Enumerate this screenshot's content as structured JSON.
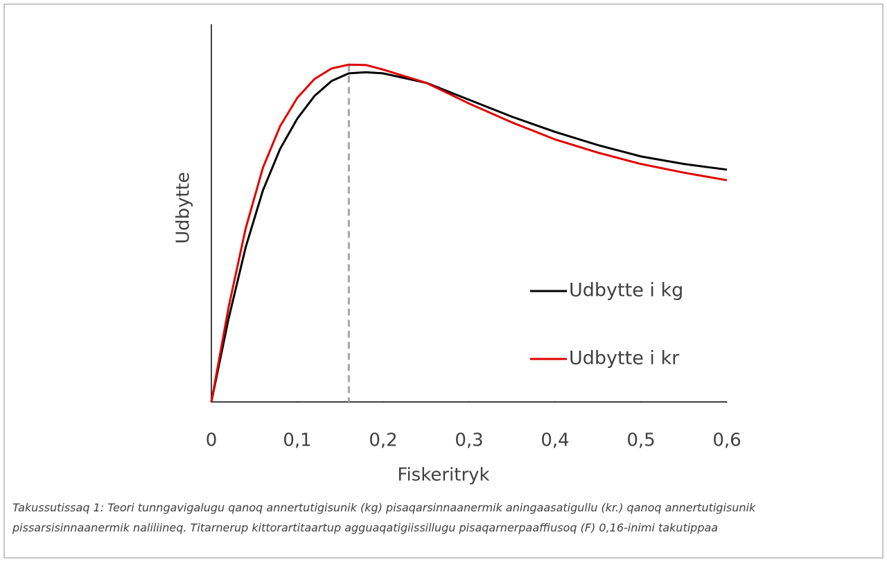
{
  "chart_data": {
    "type": "line",
    "x_label": "Fiskeritryk",
    "y_label": "Udbytte",
    "x": [
      0,
      0.02,
      0.04,
      0.06,
      0.08,
      0.1,
      0.12,
      0.14,
      0.16,
      0.18,
      0.2,
      0.25,
      0.3,
      0.35,
      0.4,
      0.45,
      0.5,
      0.55,
      0.6
    ],
    "series": [
      {
        "name": "Udbytte i kg",
        "color": "#000000",
        "values": [
          0,
          22,
          41,
          56,
          67,
          75,
          81,
          85,
          87,
          87.3,
          87,
          84.5,
          80,
          75.5,
          71.5,
          68,
          65,
          63,
          61.5
        ]
      },
      {
        "name": "Udbytte i kr",
        "color": "#e00000",
        "values": [
          0,
          25,
          46,
          62,
          73,
          80.5,
          85.5,
          88.3,
          89.3,
          89.2,
          88,
          84.5,
          79,
          74,
          69.5,
          66,
          63,
          60.7,
          58.7
        ]
      }
    ],
    "xlim": [
      0,
      0.6
    ],
    "ylim": [
      0,
      100
    ],
    "xticks": [
      0,
      {
        "value": 0.1,
        "label": "0,1"
      },
      {
        "value": 0.2,
        "label": "0,2"
      },
      {
        "value": 0.3,
        "label": "0,3"
      },
      {
        "value": 0.4,
        "label": "0,4"
      },
      {
        "value": 0.5,
        "label": "0,5"
      },
      {
        "value": 0.6,
        "label": "0,6"
      }
    ],
    "vline": 0.16,
    "legend": "right",
    "caption": "Takussutissaq 1: Teori tunngavigalugu qanoq annertutigisunik (kg) pisaqarsinnaanermik aningaasatigullu (kr.) qanoq annertutigisunik pissarsisinnaanermik naliliineq. Titarnerup kittorartitaartup agguaqatigiissillugu pisaqarnerpaaffiusoq (F) 0,16-inimi takutippaa"
  }
}
